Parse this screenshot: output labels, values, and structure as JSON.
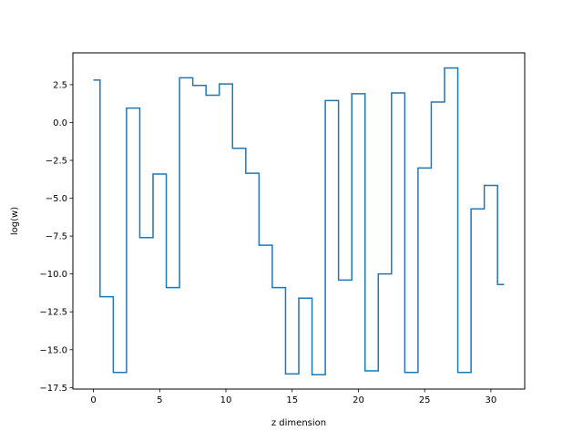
{
  "chart_data": {
    "type": "line",
    "drawstyle": "steps-mid",
    "title": "",
    "xlabel": "z dimension",
    "ylabel": "log(w)",
    "xlim": [
      -1.55,
      32.55
    ],
    "ylim": [
      -17.6,
      4.6
    ],
    "xticks": [
      0,
      5,
      10,
      15,
      20,
      25,
      30
    ],
    "xtick_labels": [
      "0",
      "5",
      "10",
      "15",
      "20",
      "25",
      "30"
    ],
    "yticks": [
      2.5,
      0.0,
      -2.5,
      -5.0,
      -7.5,
      -10.0,
      -12.5,
      -15.0,
      -17.5
    ],
    "ytick_labels": [
      "2.5",
      "0.0",
      "−2.5",
      "−5.0",
      "−7.5",
      "−10.0",
      "−12.5",
      "−15.0",
      "−17.5"
    ],
    "grid": false,
    "x": [
      0,
      1,
      2,
      3,
      4,
      5,
      6,
      7,
      8,
      9,
      10,
      11,
      12,
      13,
      14,
      15,
      16,
      17,
      18,
      19,
      20,
      21,
      22,
      23,
      24,
      25,
      26,
      27,
      28,
      29,
      30,
      31
    ],
    "series": [
      {
        "values": [
          2.8,
          -11.5,
          -16.5,
          0.95,
          -7.6,
          -3.4,
          -10.9,
          2.95,
          2.45,
          1.8,
          2.55,
          -1.7,
          -3.35,
          -8.1,
          -10.9,
          -16.6,
          -11.6,
          -16.65,
          1.45,
          -10.4,
          1.9,
          -16.4,
          -10.0,
          1.95,
          -16.5,
          -3.0,
          1.35,
          3.6,
          -16.5,
          -5.7,
          -4.15,
          -10.7
        ]
      }
    ],
    "line_color": "#1f77b4"
  }
}
